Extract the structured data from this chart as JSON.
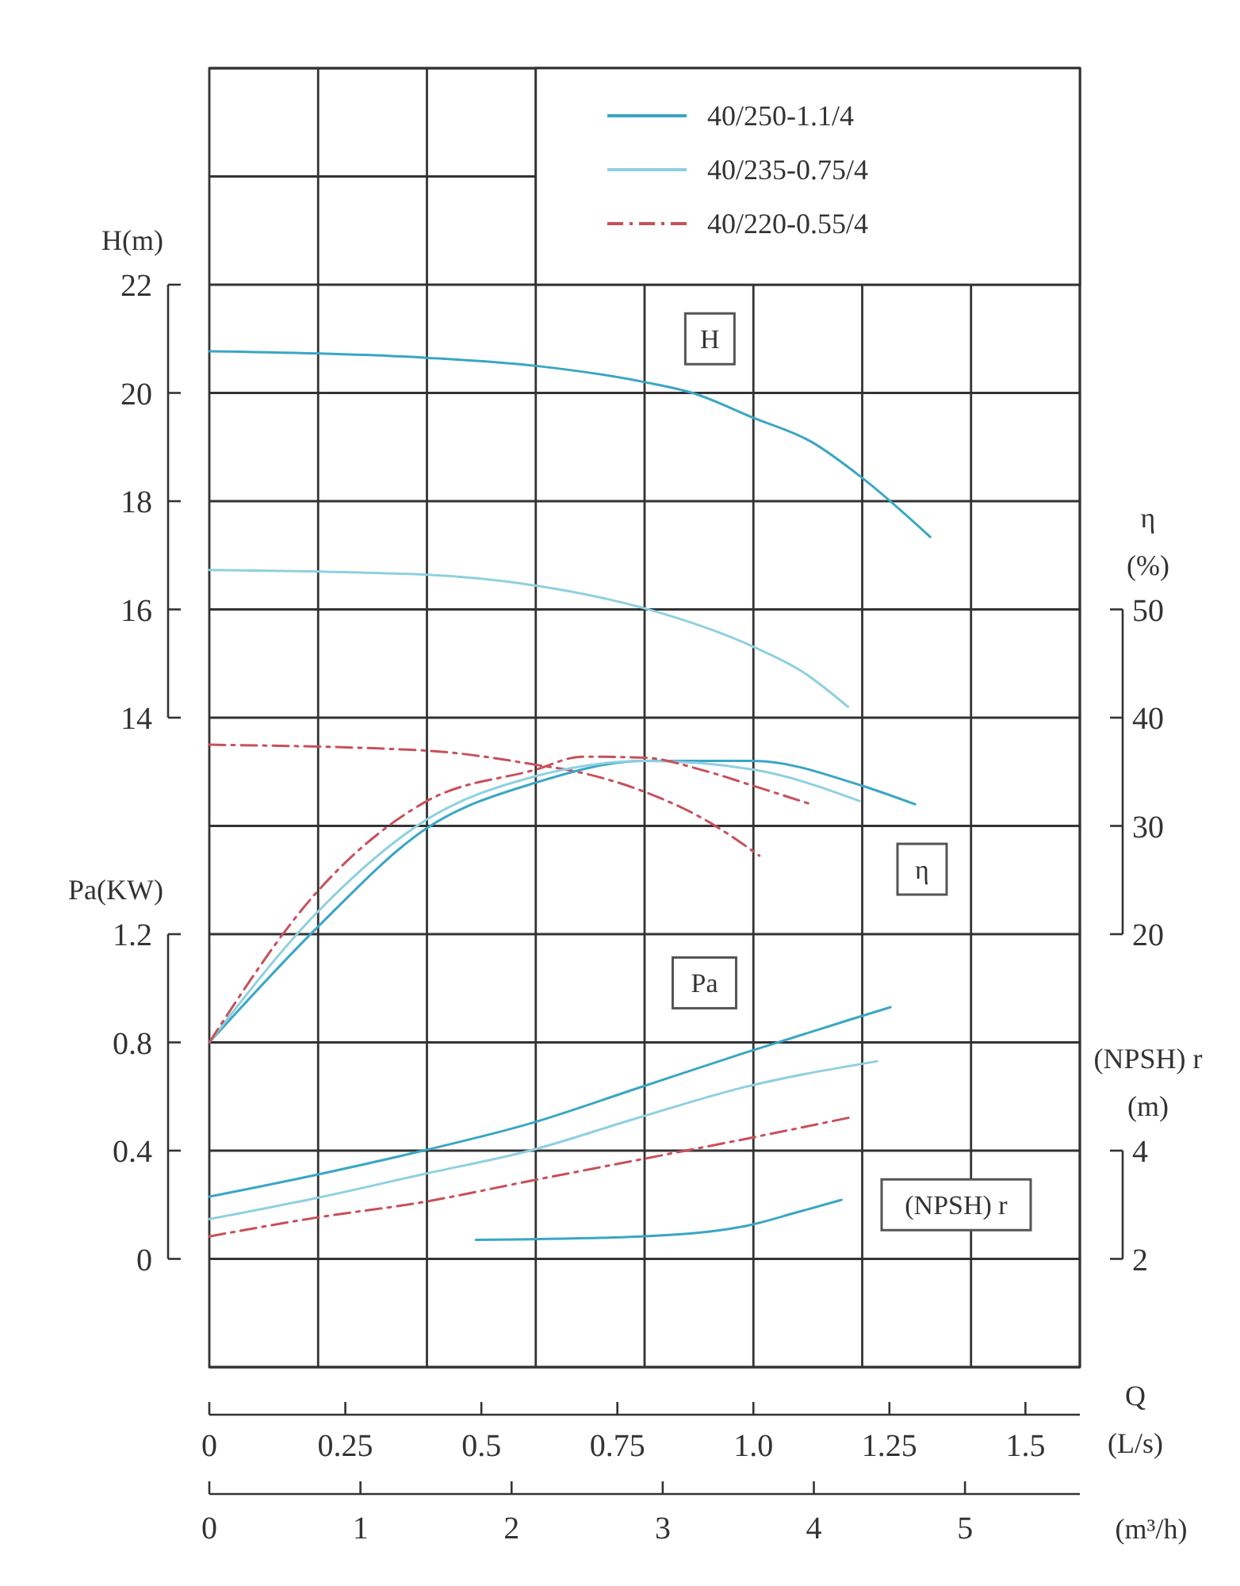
{
  "chart_data": [
    {
      "type": "line",
      "xlabel": "Q\n(L/s)",
      "ylabel": "H(m)",
      "y2label": "η\n(%)",
      "y3label": "Pa(KW)",
      "x2label": "(m³/h)",
      "xlim": [
        0,
        1.6
      ],
      "xticks": [
        0,
        0.25,
        0.5,
        0.75,
        {
          "value": 1,
          "label": "1.0"
        },
        1.25,
        1.5,
        {
          "value": 0.2,
          "label": null
        },
        {
          "value": 0.4,
          "label": null
        },
        {
          "value": 0.6,
          "label": null
        },
        {
          "value": 0.8,
          "label": null
        },
        {
          "value": 1,
          "label": null
        },
        {
          "value": 1.2,
          "label": null
        },
        {
          "value": 1.4,
          "label": null
        },
        {
          "value": 1.6,
          "label": null
        }
      ],
      "x2lim": [
        0,
        5.76
      ],
      "x2ticks": [
        0,
        1,
        2,
        3,
        4,
        5
      ],
      "ylim": [
        2,
        26
      ],
      "yticks": [
        {
          "value": 2,
          "label": null
        },
        {
          "value": 4,
          "label": null
        },
        {
          "value": 6,
          "label": null
        },
        {
          "value": 8,
          "label": null
        },
        {
          "value": 10,
          "label": null
        },
        {
          "value": 12,
          "label": null
        },
        14,
        16,
        18,
        20,
        22,
        {
          "value": 24,
          "label": null
        },
        {
          "value": 26,
          "label": null
        }
      ],
      "y2lim": [
        -20,
        100
      ],
      "y2ticks": [
        20,
        30,
        40,
        50
      ],
      "y3lim": [
        -0.4,
        4.4
      ],
      "y3ticks": [
        0,
        0.4,
        0.8,
        1.2
      ],
      "grid": true,
      "legend": "top right",
      "series": [
        {
          "name": "40/250-1.1/4",
          "color": "#3aa6c4",
          "x": [
            0,
            0.4,
            0.6,
            0.8,
            0.888,
            1.0,
            1.106,
            1.2,
            1.325
          ],
          "values": [
            20.77,
            20.65,
            20.5,
            20.2,
            20.0,
            19.54,
            19.1,
            18.43,
            17.34
          ]
        },
        {
          "name": "40/235-0.75/4",
          "color": "#8fd0e0",
          "x": [
            0,
            0.4,
            0.6,
            0.8,
            1.0,
            1.09,
            1.174
          ],
          "values": [
            16.73,
            16.64,
            16.44,
            16.02,
            15.31,
            14.85,
            14.2
          ]
        },
        {
          "name": "40/220-0.55/4",
          "color": "#c8505a",
          "line_style": "dashed",
          "x": [
            0,
            0.4,
            0.6,
            0.685,
            0.8,
            0.91,
            1.011
          ],
          "values": [
            13.5,
            13.39,
            13.13,
            12.98,
            12.63,
            12.12,
            11.45
          ]
        },
        {
          "color": "#3aa6c4",
          "axis": "y2",
          "x": [
            0,
            0.198,
            0.4,
            0.6,
            0.8,
            1.0,
            1.2,
            1.297
          ],
          "values": [
            10,
            20.6,
            29.8,
            34.0,
            36.0,
            36.0,
            33.7,
            32.0
          ]
        },
        {
          "color": "#8fd0e0",
          "axis": "y2",
          "x": [
            0,
            0.198,
            0.4,
            0.6,
            0.8,
            1.0,
            1.195
          ],
          "values": [
            10,
            22.0,
            30.6,
            34.6,
            36.0,
            35.2,
            32.3
          ]
        },
        {
          "color": "#c8505a",
          "line_style": "dashed",
          "axis": "y2",
          "x": [
            0,
            0.198,
            0.4,
            0.6,
            0.685,
            0.8,
            0.91,
            1.0,
            1.106
          ],
          "values": [
            10,
            23.9,
            32.3,
            35.2,
            36.4,
            36.3,
            35.1,
            33.7,
            32.0
          ]
        },
        {
          "color": "#3aa6c4",
          "axis": "y3",
          "x": [
            0,
            0.195,
            0.393,
            0.589,
            0.786,
            0.982,
            1.179,
            1.252
          ],
          "values": [
            0.23,
            0.31,
            0.4,
            0.5,
            0.63,
            0.76,
            0.885,
            0.93
          ]
        },
        {
          "color": "#8fd0e0",
          "axis": "y3",
          "x": [
            0,
            0.195,
            0.393,
            0.589,
            0.786,
            0.982,
            1.227
          ],
          "values": [
            0.147,
            0.224,
            0.313,
            0.4,
            0.52,
            0.634,
            0.73
          ]
        },
        {
          "color": "#c8505a",
          "line_style": "dashed",
          "axis": "y3",
          "x": [
            0,
            0.195,
            0.393,
            0.589,
            0.786,
            0.982,
            1.181
          ],
          "values": [
            0.083,
            0.152,
            0.21,
            0.288,
            0.365,
            0.442,
            0.524
          ]
        }
      ],
      "annotations": [
        {
          "text": "H",
          "x": 0.92,
          "y": 21.0
        },
        {
          "text": "η",
          "x": 1.31,
          "y": 11.2
        },
        {
          "text": "Pa",
          "x": 0.91,
          "y": 9.1
        }
      ]
    },
    {
      "type": "line",
      "ylabel": "(NPSH) r\n(m)",
      "xlim": [
        0,
        1.6
      ],
      "ylim": [
        0,
        24
      ],
      "yticks": [
        2,
        4
      ],
      "tick_labels": "y",
      "series": [
        {
          "color": "#3aa6c4",
          "x": [
            0.49,
            0.786,
            0.982,
            1.08,
            1.162
          ],
          "values": [
            2.35,
            2.41,
            2.6,
            2.86,
            3.09
          ]
        }
      ],
      "annotations": [
        "(NPSH) r"
      ]
    }
  ]
}
